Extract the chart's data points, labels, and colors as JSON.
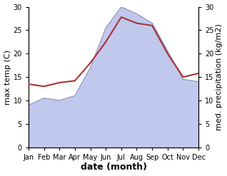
{
  "months": [
    "Jan",
    "Feb",
    "Mar",
    "Apr",
    "May",
    "Jun",
    "Jul",
    "Aug",
    "Sep",
    "Oct",
    "Nov",
    "Dec"
  ],
  "x": [
    1,
    2,
    3,
    4,
    5,
    6,
    7,
    8,
    9,
    10,
    11,
    12
  ],
  "max_temp": [
    13.5,
    13.0,
    13.8,
    14.2,
    18.0,
    22.5,
    27.8,
    26.5,
    26.0,
    20.0,
    15.0,
    15.8
  ],
  "precipitation": [
    9.0,
    10.5,
    10.0,
    11.0,
    17.0,
    25.5,
    30.0,
    28.5,
    26.5,
    20.5,
    14.5,
    14.0
  ],
  "temp_color": "#aa3333",
  "precip_fill_color": "#c0c8ee",
  "precip_line_color": "#9090bb",
  "ylim_left": [
    0,
    30
  ],
  "ylim_right": [
    0,
    30
  ],
  "yticks": [
    0,
    5,
    10,
    15,
    20,
    25,
    30
  ],
  "ylabel_left": "max temp (C)",
  "ylabel_right": "med. precipitation (kg/m2)",
  "xlabel": "date (month)",
  "tick_label_size": 7,
  "axis_label_size": 8,
  "xlabel_fontsize": 9
}
